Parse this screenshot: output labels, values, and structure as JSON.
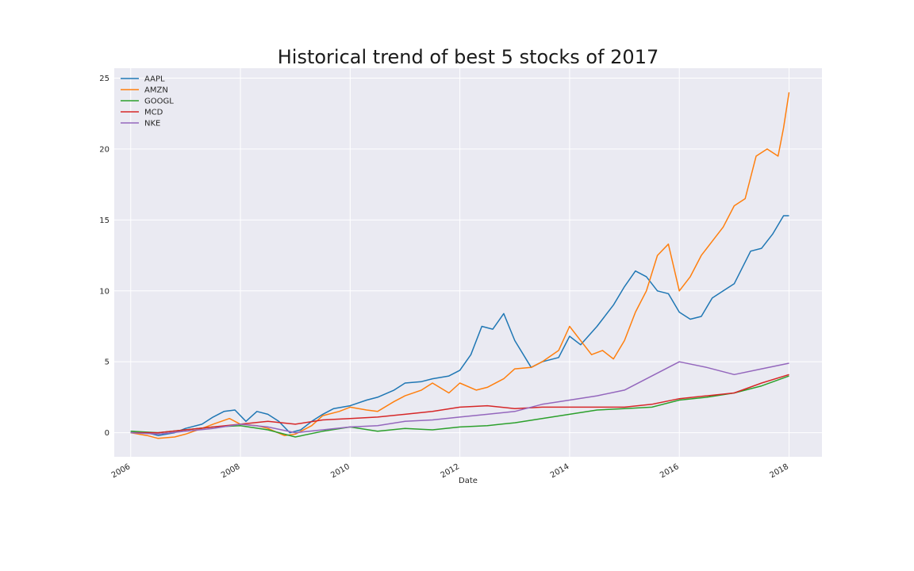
{
  "chart_data": {
    "type": "line",
    "title": "Historical trend of best 5 stocks of 2017",
    "xlabel": "Date",
    "ylabel": "",
    "xlim": [
      2005.7,
      2018.6
    ],
    "ylim": [
      -1.7,
      25.7
    ],
    "x_ticks": [
      2006,
      2008,
      2010,
      2012,
      2014,
      2016,
      2018
    ],
    "y_ticks": [
      0,
      5,
      10,
      15,
      20,
      25
    ],
    "grid": true,
    "legend_position": "top-left",
    "background": "#eaeaf2",
    "series": [
      {
        "name": "AAPL",
        "color": "#1f77b4",
        "x": [
          2006.0,
          2006.3,
          2006.5,
          2006.8,
          2007.0,
          2007.3,
          2007.5,
          2007.7,
          2007.9,
          2008.1,
          2008.3,
          2008.5,
          2008.7,
          2008.9,
          2009.1,
          2009.3,
          2009.5,
          2009.7,
          2010.0,
          2010.3,
          2010.5,
          2010.8,
          2011.0,
          2011.3,
          2011.5,
          2011.8,
          2012.0,
          2012.2,
          2012.4,
          2012.6,
          2012.8,
          2013.0,
          2013.3,
          2013.5,
          2013.8,
          2014.0,
          2014.2,
          2014.5,
          2014.8,
          2015.0,
          2015.2,
          2015.4,
          2015.6,
          2015.8,
          2016.0,
          2016.2,
          2016.4,
          2016.6,
          2016.8,
          2017.0,
          2017.3,
          2017.5,
          2017.7,
          2017.9,
          2018.0
        ],
        "y": [
          0.1,
          0.0,
          -0.2,
          0.0,
          0.3,
          0.6,
          1.1,
          1.5,
          1.6,
          0.8,
          1.5,
          1.3,
          0.8,
          0.0,
          0.2,
          0.8,
          1.3,
          1.7,
          1.9,
          2.3,
          2.5,
          3.0,
          3.5,
          3.6,
          3.8,
          4.0,
          4.4,
          5.5,
          7.5,
          7.3,
          8.4,
          6.5,
          4.6,
          5.0,
          5.3,
          6.8,
          6.2,
          7.5,
          9.0,
          10.3,
          11.4,
          11.0,
          10.0,
          9.8,
          8.5,
          8.0,
          8.2,
          9.5,
          10.0,
          10.5,
          12.8,
          13.0,
          14.0,
          15.3,
          15.3
        ]
      },
      {
        "name": "AMZN",
        "color": "#ff7f0e",
        "x": [
          2006.0,
          2006.3,
          2006.5,
          2006.8,
          2007.0,
          2007.3,
          2007.5,
          2007.8,
          2008.0,
          2008.3,
          2008.5,
          2008.8,
          2009.0,
          2009.3,
          2009.5,
          2009.8,
          2010.0,
          2010.3,
          2010.5,
          2010.8,
          2011.0,
          2011.3,
          2011.5,
          2011.8,
          2012.0,
          2012.3,
          2012.5,
          2012.8,
          2013.0,
          2013.3,
          2013.5,
          2013.8,
          2014.0,
          2014.2,
          2014.4,
          2014.6,
          2014.8,
          2015.0,
          2015.2,
          2015.4,
          2015.6,
          2015.8,
          2016.0,
          2016.2,
          2016.4,
          2016.6,
          2016.8,
          2017.0,
          2017.2,
          2017.4,
          2017.6,
          2017.8,
          2017.9,
          2018.0
        ],
        "y": [
          0.0,
          -0.2,
          -0.4,
          -0.3,
          -0.1,
          0.3,
          0.6,
          1.0,
          0.6,
          0.5,
          0.3,
          -0.2,
          -0.1,
          0.5,
          1.2,
          1.5,
          1.8,
          1.6,
          1.5,
          2.2,
          2.6,
          3.0,
          3.5,
          2.8,
          3.5,
          3.0,
          3.2,
          3.8,
          4.5,
          4.6,
          5.0,
          5.8,
          7.5,
          6.5,
          5.5,
          5.8,
          5.2,
          6.5,
          8.5,
          10.0,
          12.5,
          13.3,
          10.0,
          11.0,
          12.5,
          13.5,
          14.5,
          16.0,
          16.5,
          19.5,
          20.0,
          19.5,
          21.5,
          24.0
        ]
      },
      {
        "name": "GOOGL",
        "color": "#2ca02c",
        "x": [
          2006.0,
          2006.5,
          2007.0,
          2007.5,
          2008.0,
          2008.5,
          2009.0,
          2009.5,
          2010.0,
          2010.5,
          2011.0,
          2011.5,
          2012.0,
          2012.5,
          2013.0,
          2013.5,
          2014.0,
          2014.5,
          2015.0,
          2015.5,
          2016.0,
          2016.5,
          2017.0,
          2017.5,
          2018.0
        ],
        "y": [
          0.1,
          0.0,
          0.2,
          0.4,
          0.5,
          0.2,
          -0.3,
          0.1,
          0.4,
          0.1,
          0.3,
          0.2,
          0.4,
          0.5,
          0.7,
          1.0,
          1.3,
          1.6,
          1.7,
          1.8,
          2.3,
          2.5,
          2.8,
          3.3,
          4.0
        ]
      },
      {
        "name": "MCD",
        "color": "#d62728",
        "x": [
          2006.0,
          2006.5,
          2007.0,
          2007.5,
          2008.0,
          2008.5,
          2009.0,
          2009.5,
          2010.0,
          2010.5,
          2011.0,
          2011.5,
          2012.0,
          2012.5,
          2013.0,
          2013.5,
          2014.0,
          2014.5,
          2015.0,
          2015.5,
          2016.0,
          2016.5,
          2017.0,
          2017.5,
          2018.0
        ],
        "y": [
          0.0,
          0.0,
          0.2,
          0.4,
          0.6,
          0.8,
          0.6,
          0.9,
          1.0,
          1.1,
          1.3,
          1.5,
          1.8,
          1.9,
          1.7,
          1.8,
          1.8,
          1.8,
          1.8,
          2.0,
          2.4,
          2.6,
          2.8,
          3.5,
          4.1
        ]
      },
      {
        "name": "NKE",
        "color": "#9467bd",
        "x": [
          2006.0,
          2006.5,
          2007.0,
          2007.5,
          2008.0,
          2008.5,
          2009.0,
          2009.5,
          2010.0,
          2010.5,
          2011.0,
          2011.5,
          2012.0,
          2012.5,
          2013.0,
          2013.5,
          2014.0,
          2014.5,
          2015.0,
          2015.5,
          2016.0,
          2016.5,
          2017.0,
          2017.5,
          2018.0
        ],
        "y": [
          0.0,
          -0.1,
          0.1,
          0.3,
          0.6,
          0.4,
          0.0,
          0.2,
          0.4,
          0.5,
          0.8,
          0.9,
          1.1,
          1.3,
          1.5,
          2.0,
          2.3,
          2.6,
          3.0,
          4.0,
          5.0,
          4.6,
          4.1,
          4.5,
          4.9
        ]
      }
    ]
  }
}
